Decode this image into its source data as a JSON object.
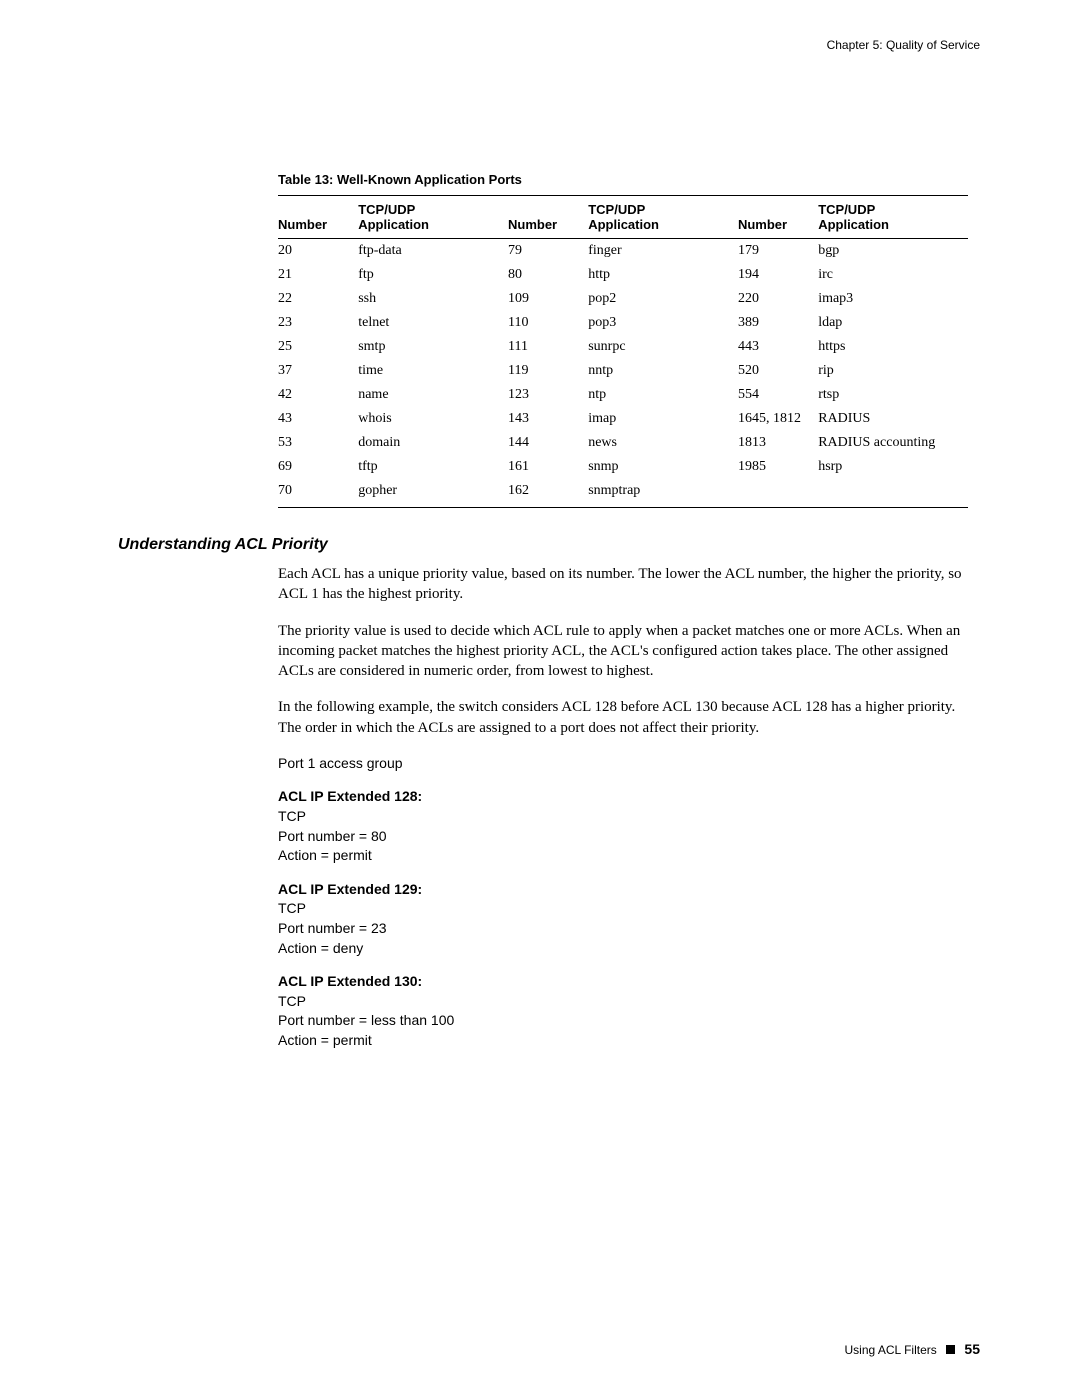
{
  "header": "Chapter 5: Quality of Service",
  "table": {
    "caption": "Table 13:  Well-Known Application Ports",
    "headers": {
      "num": "Number",
      "app_line1": "TCP/UDP",
      "app_line2": "Application"
    },
    "rows": [
      {
        "n1": "20",
        "a1": "ftp-data",
        "n2": "79",
        "a2": "finger",
        "n3": "179",
        "a3": "bgp"
      },
      {
        "n1": "21",
        "a1": "ftp",
        "n2": "80",
        "a2": "http",
        "n3": "194",
        "a3": "irc"
      },
      {
        "n1": "22",
        "a1": "ssh",
        "n2": "109",
        "a2": "pop2",
        "n3": "220",
        "a3": "imap3"
      },
      {
        "n1": "23",
        "a1": "telnet",
        "n2": "110",
        "a2": "pop3",
        "n3": "389",
        "a3": "ldap"
      },
      {
        "n1": "25",
        "a1": "smtp",
        "n2": "111",
        "a2": "sunrpc",
        "n3": "443",
        "a3": "https"
      },
      {
        "n1": "37",
        "a1": "time",
        "n2": "119",
        "a2": "nntp",
        "n3": "520",
        "a3": "rip"
      },
      {
        "n1": "42",
        "a1": "name",
        "n2": "123",
        "a2": "ntp",
        "n3": "554",
        "a3": "rtsp"
      },
      {
        "n1": "43",
        "a1": "whois",
        "n2": "143",
        "a2": "imap",
        "n3": "1645, 1812",
        "a3": "RADIUS"
      },
      {
        "n1": "53",
        "a1": "domain",
        "n2": "144",
        "a2": "news",
        "n3": "1813",
        "a3": "RADIUS accounting"
      },
      {
        "n1": "69",
        "a1": "tftp",
        "n2": "161",
        "a2": "snmp",
        "n3": "1985",
        "a3": "hsrp"
      },
      {
        "n1": "70",
        "a1": "gopher",
        "n2": "162",
        "a2": "snmptrap",
        "n3": "",
        "a3": ""
      }
    ]
  },
  "section_heading": "Understanding ACL Priority",
  "paragraphs": {
    "p1": "Each ACL has a unique priority value, based on its number. The lower the ACL number, the higher the priority, so ACL 1 has the highest priority.",
    "p2": "The priority value is used to decide which ACL rule to apply when a packet matches one or more ACLs. When an incoming packet matches the highest priority ACL, the ACL's configured action takes place. The other assigned ACLs are considered in numeric order, from lowest to highest.",
    "p3": "In the following example, the switch considers ACL 128 before ACL 130 because ACL 128 has a higher priority. The order in which the ACLs are assigned to a port does not affect their priority."
  },
  "code": {
    "intro": "Port 1 access group",
    "acl128_title": "ACL IP Extended 128:",
    "acl128_l1": "TCP",
    "acl128_l2": "Port number = 80",
    "acl128_l3": "Action = permit",
    "acl129_title": "ACL IP Extended 129:",
    "acl129_l1": "TCP",
    "acl129_l2": "Port number = 23",
    "acl129_l3": "Action = deny",
    "acl130_title": "ACL IP Extended 130:",
    "acl130_l1": "TCP",
    "acl130_l2": "Port number = less than 100",
    "acl130_l3": "Action = permit"
  },
  "footer": {
    "text": "Using ACL Filters",
    "page": "55"
  }
}
